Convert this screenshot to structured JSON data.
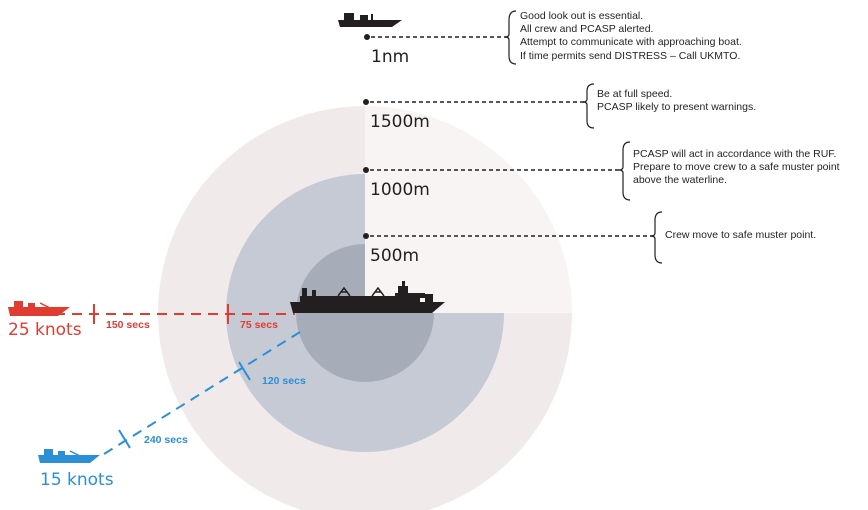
{
  "colors": {
    "outer_zone": "#f0ebea",
    "mid_zone": "#c6cad4",
    "inner_zone": "#a7acb9",
    "ship": "#231f20",
    "red_track": "#e03c31",
    "blue_track": "#2a8fd6",
    "leader_line": "#231f20"
  },
  "ranges": [
    {
      "label": "1nm",
      "note": [
        "Good look out is essential.",
        "All crew and PCASP alerted.",
        "Attempt to communicate with approaching boat.",
        "If time permits send DISTRESS – Call UKMTO."
      ]
    },
    {
      "label": "1500m",
      "note": [
        "Be at full speed.",
        "PCASP likely to present warnings."
      ]
    },
    {
      "label": "1000m",
      "note": [
        "PCASP will act in accordance with the RUF.",
        "Prepare to move crew to a safe muster point",
        "above the waterline."
      ]
    },
    {
      "label": "500m",
      "note": [
        "Crew move to safe muster point."
      ]
    }
  ],
  "approaches": {
    "red": {
      "speed": "25 knots",
      "time_far": "150 secs",
      "time_near": "75 secs"
    },
    "blue": {
      "speed": "15 knots",
      "time_far": "240 secs",
      "time_near": "120 secs"
    }
  },
  "icons": {
    "vessel": "tanker-ship-icon",
    "small_boat": "skiff-icon"
  }
}
